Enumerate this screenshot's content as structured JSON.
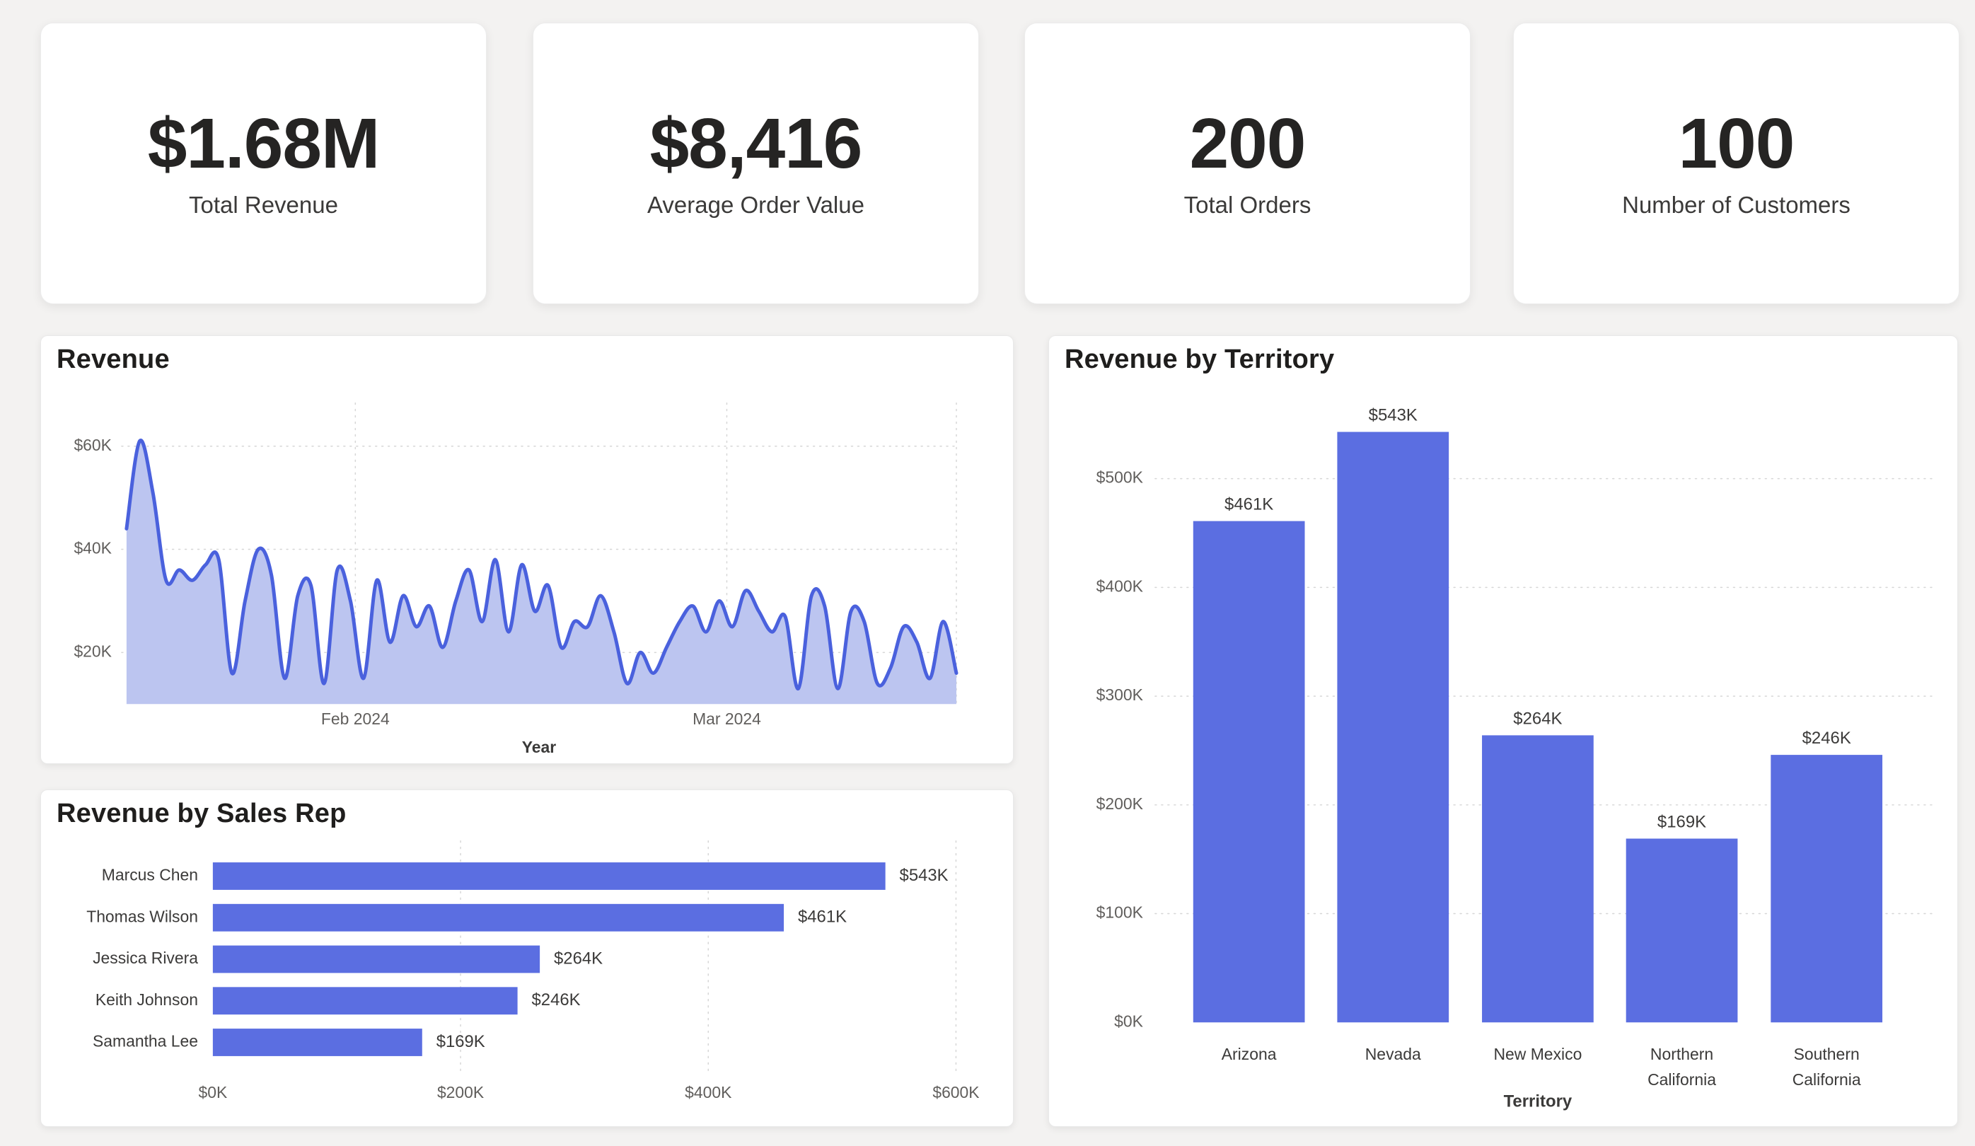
{
  "colors": {
    "accent": "#5b6ee1",
    "line": "#4a61dd",
    "area_fill": "#bcc5f0",
    "grid": "#d6d6d6",
    "background": "#f3f2f1",
    "panel_background": "#ffffff",
    "text_primary": "#252423",
    "text_secondary": "#605e5c",
    "text_label": "#3b3a39"
  },
  "kpis": [
    {
      "value": "$1.68M",
      "label": "Total Revenue"
    },
    {
      "value": "$8,416",
      "label": "Average Order Value"
    },
    {
      "value": "200",
      "label": "Total Orders"
    },
    {
      "value": "100",
      "label": "Number of Customers"
    }
  ],
  "chart_data": [
    {
      "id": "revenue-trend",
      "type": "area",
      "title": "Revenue",
      "xlabel": "Year",
      "x_ticks": [
        {
          "label": "Feb 2024",
          "pos": 0.28
        },
        {
          "label": "Mar 2024",
          "pos": 0.725
        }
      ],
      "y_ticks": [
        {
          "label": "$20K",
          "value": 20000
        },
        {
          "label": "$40K",
          "value": 40000
        },
        {
          "label": "$60K",
          "value": 60000
        }
      ],
      "ylim": [
        10000,
        64000
      ],
      "values": [
        44000,
        61000,
        51000,
        34000,
        36000,
        34000,
        37000,
        38000,
        16000,
        30000,
        40000,
        35000,
        15000,
        31000,
        33000,
        14000,
        36000,
        30000,
        15000,
        34000,
        22000,
        31000,
        25000,
        29000,
        21000,
        30000,
        36000,
        26000,
        38000,
        24000,
        37000,
        28000,
        33000,
        21000,
        26000,
        25000,
        31000,
        24000,
        14000,
        20000,
        16000,
        21000,
        26000,
        29000,
        24000,
        30000,
        25000,
        32000,
        28000,
        24000,
        27000,
        13000,
        31000,
        29000,
        13000,
        28000,
        26000,
        14000,
        17000,
        25000,
        22000,
        15000,
        26000,
        16000
      ]
    },
    {
      "id": "revenue-by-sales-rep",
      "type": "bar-horizontal",
      "title": "Revenue by Sales Rep",
      "categories": [
        "Marcus Chen",
        "Thomas Wilson",
        "Jessica Rivera",
        "Keith Johnson",
        "Samantha Lee"
      ],
      "values": [
        543000,
        461000,
        264000,
        246000,
        169000
      ],
      "value_labels": [
        "$543K",
        "$461K",
        "$264K",
        "$246K",
        "$169K"
      ],
      "x_ticks": [
        {
          "label": "$0K",
          "value": 0
        },
        {
          "label": "$200K",
          "value": 200000
        },
        {
          "label": "$400K",
          "value": 400000
        },
        {
          "label": "$600K",
          "value": 600000
        }
      ],
      "xlim": [
        0,
        600000
      ]
    },
    {
      "id": "revenue-by-territory",
      "type": "bar",
      "title": "Revenue by Territory",
      "xlabel": "Territory",
      "categories": [
        "Arizona",
        "Nevada",
        "New Mexico",
        "Northern California",
        "Southern California"
      ],
      "values": [
        461000,
        543000,
        264000,
        169000,
        246000
      ],
      "value_labels": [
        "$461K",
        "$543K",
        "$264K",
        "$169K",
        "$246K"
      ],
      "y_ticks": [
        {
          "label": "$0K",
          "value": 0
        },
        {
          "label": "$100K",
          "value": 100000
        },
        {
          "label": "$200K",
          "value": 200000
        },
        {
          "label": "$300K",
          "value": 300000
        },
        {
          "label": "$400K",
          "value": 400000
        },
        {
          "label": "$500K",
          "value": 500000
        }
      ],
      "ylim": [
        0,
        560000
      ]
    }
  ]
}
